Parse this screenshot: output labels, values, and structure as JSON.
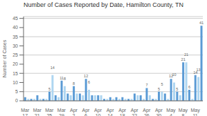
{
  "chart_data": {
    "type": "bar",
    "title": "Number of Cases Reported by Date, Hamilton County, TN",
    "y_label": "Number of Cases",
    "categories": [
      "Mar\n17",
      null,
      null,
      null,
      "Mar\n21",
      null,
      null,
      null,
      "Mar\n25",
      null,
      null,
      null,
      "Mar\n29",
      null,
      null,
      null,
      "Apr\n2",
      null,
      null,
      null,
      "Apr\n6",
      null,
      null,
      null,
      "Apr\n10",
      null,
      null,
      null,
      "Apr\n14",
      null,
      null,
      null,
      "Apr\n18",
      null,
      null,
      null,
      "Apr\n22",
      null,
      null,
      null,
      "Apr\n26",
      null,
      null,
      null,
      "Apr\n30",
      null,
      null,
      null,
      "May\n4",
      null,
      null,
      null,
      "May\n8",
      null,
      null,
      null,
      "May\n11",
      null,
      null
    ],
    "values": [
      2,
      1,
      1,
      1,
      3,
      1,
      1,
      1,
      5,
      14,
      3,
      2,
      11,
      8,
      4,
      3,
      8,
      4,
      4,
      3,
      12,
      6,
      3,
      3,
      3,
      3,
      1,
      1,
      2,
      1,
      2,
      1,
      2,
      1,
      1,
      1,
      4,
      3,
      3,
      1,
      7,
      3,
      1,
      1,
      5,
      5,
      4,
      1,
      12,
      10,
      5,
      3,
      21,
      21,
      6,
      1,
      14,
      13,
      41
    ],
    "value_labels": [
      null,
      null,
      null,
      null,
      null,
      null,
      null,
      null,
      "5",
      "14",
      null,
      null,
      "11",
      "8",
      null,
      null,
      "8",
      null,
      null,
      null,
      "12",
      "6",
      null,
      null,
      null,
      null,
      null,
      null,
      null,
      null,
      null,
      null,
      null,
      null,
      null,
      null,
      null,
      null,
      null,
      null,
      "7",
      null,
      null,
      null,
      "5",
      "5",
      null,
      null,
      "12",
      "10",
      "5",
      null,
      "21",
      "21",
      "6",
      null,
      "14",
      "13",
      "41"
    ],
    "colors": [
      "#5b9bd5",
      "#aed6f1",
      "#5b9bd5",
      "#aed6f1",
      "#5b9bd5",
      "#aed6f1",
      "#5b9bd5",
      "#aed6f1",
      "#5b9bd5",
      "#aed6f1",
      "#5b9bd5",
      "#aed6f1",
      "#5b9bd5",
      "#aed6f1",
      "#5b9bd5",
      "#aed6f1",
      "#5b9bd5",
      "#aed6f1",
      "#5b9bd5",
      "#aed6f1",
      "#5b9bd5",
      "#aed6f1",
      "#5b9bd5",
      "#aed6f1",
      "#5b9bd5",
      "#aed6f1",
      "#5b9bd5",
      "#aed6f1",
      "#5b9bd5",
      "#aed6f1",
      "#5b9bd5",
      "#aed6f1",
      "#5b9bd5",
      "#aed6f1",
      "#5b9bd5",
      "#aed6f1",
      "#5b9bd5",
      "#aed6f1",
      "#5b9bd5",
      "#aed6f1",
      "#5b9bd5",
      "#aed6f1",
      "#5b9bd5",
      "#aed6f1",
      "#5b9bd5",
      "#aed6f1",
      "#5b9bd5",
      "#aed6f1",
      "#5b9bd5",
      "#aed6f1",
      "#5b9bd5",
      "#aed6f1",
      "#5b9bd5",
      "#aed6f1",
      "#5b9bd5",
      "#aed6f1",
      "#5b9bd5",
      "#aed6f1",
      "#5b9bd5"
    ],
    "ylim": [
      0,
      46
    ],
    "yticks": [
      0,
      5,
      10,
      15,
      20,
      25,
      30,
      35,
      40,
      45
    ],
    "grid": true,
    "data_labels": true
  }
}
